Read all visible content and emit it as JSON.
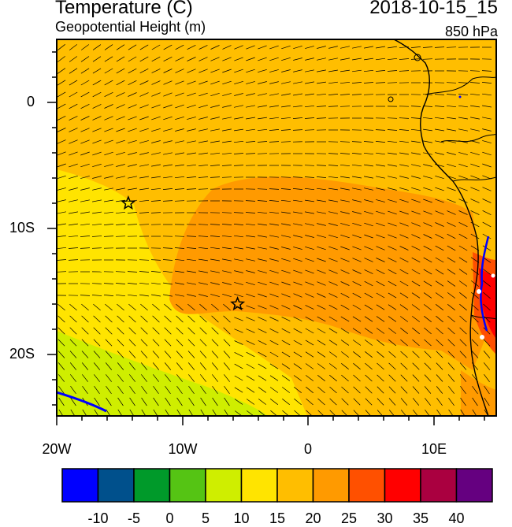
{
  "header": {
    "title": "Temperature (C)",
    "subtitle": "Geopotential Height (m)",
    "datetime": "2018-10-15_15",
    "level": "850 hPa"
  },
  "axes": {
    "y_ticks": [
      "0",
      "10S",
      "20S"
    ],
    "x_ticks": [
      "20W",
      "10W",
      "0",
      "10E"
    ]
  },
  "colorbar": {
    "labels": [
      "-10",
      "-5",
      "0",
      "5",
      "10",
      "15",
      "20",
      "25",
      "30",
      "35",
      "40"
    ],
    "colors": [
      "#0000ff",
      "#00508c",
      "#009a2a",
      "#55c414",
      "#cfee00",
      "#ffe400",
      "#ffbe00",
      "#ff9a00",
      "#ff5000",
      "#ff0000",
      "#aa0040",
      "#650080"
    ]
  },
  "markers": [
    {
      "name": "star-marker-1",
      "lon": -14.3,
      "lat": -8.0
    },
    {
      "name": "star-marker-2",
      "lon": -5.6,
      "lat": -16.0
    }
  ]
}
